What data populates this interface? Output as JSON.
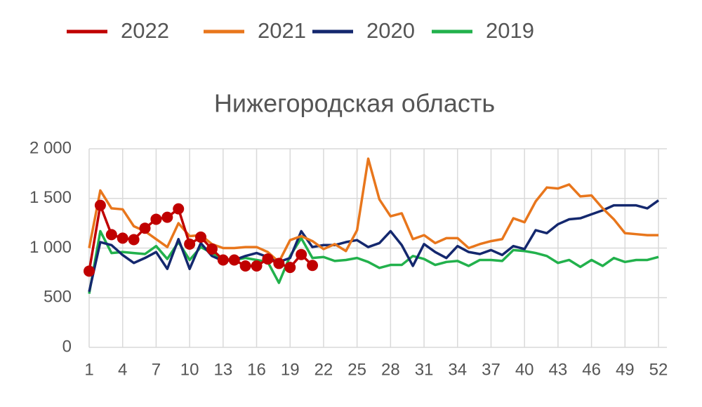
{
  "chart_data": {
    "type": "line",
    "title": "Нижегородская область",
    "x": [
      1,
      2,
      3,
      4,
      5,
      6,
      7,
      8,
      9,
      10,
      11,
      12,
      13,
      14,
      15,
      16,
      17,
      18,
      19,
      20,
      21,
      22,
      23,
      24,
      25,
      26,
      27,
      28,
      29,
      30,
      31,
      32,
      33,
      34,
      35,
      36,
      37,
      38,
      39,
      40,
      41,
      42,
      43,
      44,
      45,
      46,
      47,
      48,
      49,
      50,
      51,
      52
    ],
    "series": [
      {
        "name": "2022",
        "color": "#c00000",
        "marker": "circle",
        "values": [
          768,
          1430,
          1135,
          1100,
          1085,
          1200,
          1290,
          1310,
          1395,
          1040,
          1110,
          990,
          880,
          880,
          820,
          820,
          890,
          845,
          805,
          935,
          825,
          null,
          null,
          null,
          null,
          null,
          null,
          null,
          null,
          null,
          null,
          null,
          null,
          null,
          null,
          null,
          null,
          null,
          null,
          null,
          null,
          null,
          null,
          null,
          null,
          null,
          null,
          null,
          null,
          null,
          null,
          null
        ]
      },
      {
        "name": "2021",
        "color": "#e8761c",
        "values": [
          1000,
          1580,
          1400,
          1390,
          1220,
          1170,
          1090,
          1010,
          1250,
          1120,
          1130,
          1040,
          1000,
          1000,
          1010,
          1010,
          960,
          860,
          1080,
          1120,
          1070,
          990,
          1040,
          970,
          1180,
          1900,
          1490,
          1320,
          1350,
          1090,
          1130,
          1050,
          1100,
          1100,
          1000,
          1040,
          1070,
          1090,
          1300,
          1260,
          1470,
          1610,
          1600,
          1640,
          1520,
          1530,
          1400,
          1290,
          1150,
          1140,
          1130,
          1130
        ]
      },
      {
        "name": "2020",
        "color": "#14286e",
        "values": [
          560,
          1060,
          1030,
          930,
          850,
          900,
          960,
          790,
          1090,
          790,
          1050,
          920,
          870,
          880,
          920,
          950,
          910,
          860,
          900,
          1170,
          1010,
          1030,
          1030,
          1060,
          1080,
          1010,
          1050,
          1170,
          1030,
          820,
          1040,
          960,
          900,
          1020,
          960,
          940,
          980,
          930,
          1020,
          990,
          1180,
          1150,
          1240,
          1290,
          1300,
          1340,
          1380,
          1430,
          1430,
          1430,
          1400,
          1480
        ]
      },
      {
        "name": "2019",
        "color": "#22b14c",
        "values": [
          540,
          1170,
          950,
          960,
          950,
          940,
          1020,
          890,
          1060,
          880,
          1010,
          950,
          890,
          880,
          900,
          880,
          860,
          650,
          920,
          1100,
          900,
          910,
          870,
          880,
          900,
          860,
          800,
          830,
          830,
          920,
          890,
          830,
          860,
          870,
          820,
          880,
          880,
          870,
          980,
          970,
          950,
          920,
          850,
          880,
          810,
          880,
          820,
          900,
          860,
          880,
          880,
          910
        ]
      }
    ],
    "xlim": [
      1,
      52
    ],
    "xticks": [
      1,
      4,
      7,
      10,
      13,
      16,
      19,
      22,
      25,
      28,
      31,
      34,
      37,
      40,
      43,
      46,
      49,
      52
    ],
    "ylim": [
      0,
      2000
    ],
    "yticks": [
      0,
      500,
      {
        "value": 1000,
        "label": "1 000"
      },
      {
        "value": 1500,
        "label": "1 500"
      },
      {
        "value": 2000,
        "label": "2 000"
      }
    ],
    "grid": true,
    "legend": "top"
  }
}
